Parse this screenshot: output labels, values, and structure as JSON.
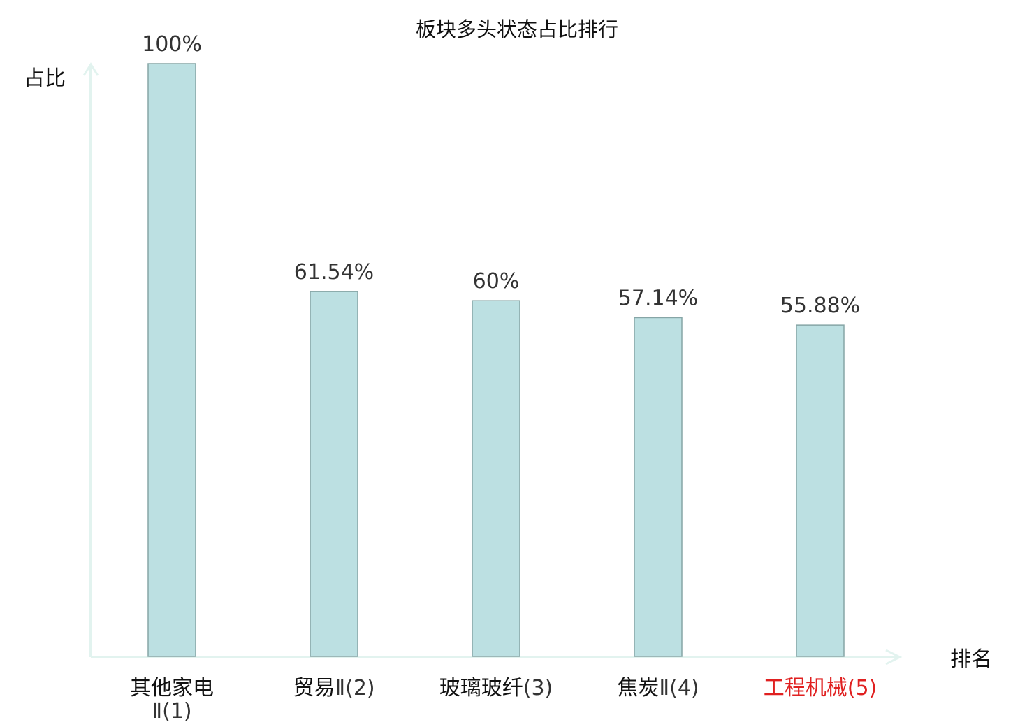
{
  "chart_data": {
    "type": "bar",
    "title": "板块多头状态占比排行",
    "xlabel": "排名",
    "ylabel": "占比",
    "ylim": [
      0,
      100
    ],
    "grid": false,
    "legend": "none",
    "categories": [
      {
        "name": "其他家电",
        "suffix": "Ⅱ",
        "rank": "(1)",
        "highlight": false
      },
      {
        "name": "贸易",
        "suffix": "Ⅱ",
        "rank": "(2)",
        "highlight": false
      },
      {
        "name": "玻璃玻纤",
        "suffix": "",
        "rank": "(3)",
        "highlight": false
      },
      {
        "name": "焦炭",
        "suffix": "Ⅱ",
        "rank": "(4)",
        "highlight": false
      },
      {
        "name": "工程机械",
        "suffix": "",
        "rank": "(5)",
        "highlight": true
      }
    ],
    "values": [
      100,
      61.54,
      60,
      57.14,
      55.88
    ],
    "value_labels": [
      "100%",
      "61.54%",
      "60%",
      "57.14%",
      "55.88%"
    ],
    "colors": {
      "bar_fill": "#bce0e2",
      "bar_stroke": "#86a5a6",
      "axis": "#e2f3ef",
      "text": "#111111",
      "secondary_text": "#333333",
      "highlight": "#e02020"
    }
  }
}
